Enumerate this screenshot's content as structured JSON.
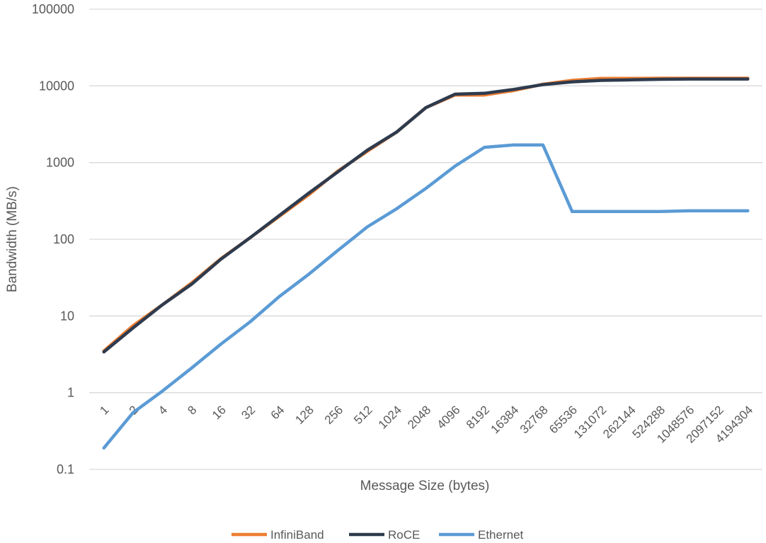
{
  "chart_data": {
    "type": "line",
    "xlabel": "Message Size (bytes)",
    "ylabel": "Bandwidth (MB/s)",
    "yscale": "log",
    "ylim": [
      0.1,
      100000
    ],
    "yticks": [
      "0.1",
      "1",
      "10",
      "100",
      "1000",
      "10000",
      "100000"
    ],
    "grid": true,
    "legend_position": "bottom",
    "categories": [
      "1",
      "2",
      "4",
      "8",
      "16",
      "32",
      "64",
      "128",
      "256",
      "512",
      "1024",
      "2048",
      "4096",
      "8192",
      "16384",
      "32768",
      "65536",
      "131072",
      "262144",
      "524288",
      "1048576",
      "2097152",
      "4194304"
    ],
    "series": [
      {
        "name": "InfiniBand",
        "color": "#ED7D31",
        "values": [
          3.5,
          7.5,
          14,
          27,
          56,
          105,
          200,
          380,
          780,
          1400,
          2500,
          5200,
          7600,
          7600,
          8700,
          10500,
          11800,
          12500,
          12500,
          12600,
          12600,
          12600,
          12600
        ]
      },
      {
        "name": "RoCE",
        "color": "#2E3B4E",
        "values": [
          3.4,
          7.0,
          14,
          26,
          55,
          105,
          205,
          400,
          760,
          1450,
          2500,
          5200,
          7800,
          8000,
          9000,
          10400,
          11300,
          11800,
          12000,
          12200,
          12300,
          12300,
          12300
        ]
      },
      {
        "name": "Ethernet",
        "color": "#5B9BD5",
        "values": [
          0.19,
          0.55,
          1.05,
          2.1,
          4.3,
          8.4,
          18,
          35,
          72,
          145,
          250,
          460,
          900,
          1580,
          1700,
          1700,
          230,
          230,
          230,
          230,
          235,
          235,
          235
        ]
      }
    ]
  }
}
